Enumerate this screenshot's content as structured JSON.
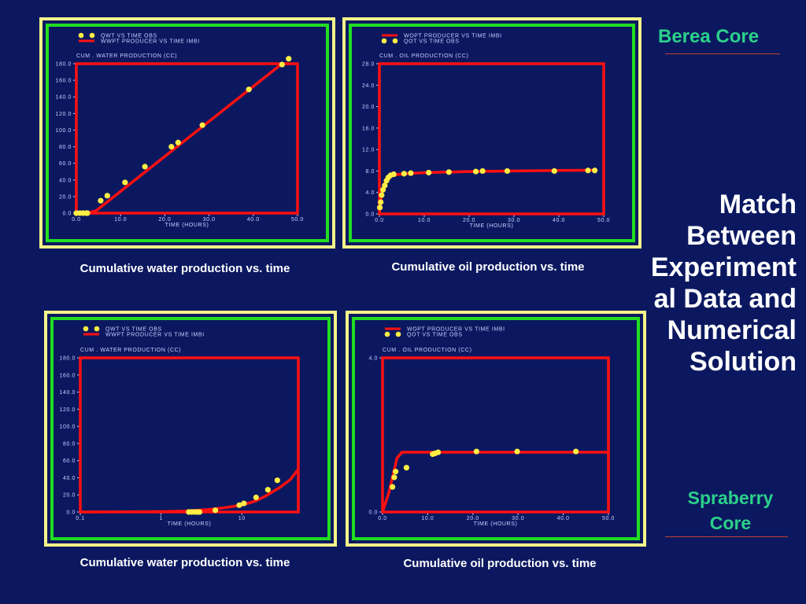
{
  "slide": {
    "title_lines": [
      "Match",
      "Between",
      "Experiment",
      "al Data and",
      "Numerical",
      "Solution"
    ],
    "berea_label": "Berea Core",
    "spraberry_label": "Spraberry Core",
    "accent_color": "#2bd18a",
    "background_color": "#0b1860"
  },
  "colors": {
    "sim_line": "#ff1010",
    "obs_point": "#ffee44",
    "outer_frame": "#f5f58a",
    "inner_frame": "#22dd22"
  },
  "chart_data": [
    {
      "type": "line",
      "caption": "Cumulative water production vs. time",
      "ylabel": "CUM . WATER PRODUCTION (CC)",
      "xlabel": "TIME (HOURS)",
      "xscale": "linear",
      "xlim": [
        0,
        50
      ],
      "ylim": [
        0,
        180
      ],
      "xticks": [
        0,
        10,
        20,
        30,
        40,
        50
      ],
      "xtick_labels": [
        "0.0",
        "10.0",
        "20.0",
        "30.0",
        "40.0",
        "50.0"
      ],
      "yticks": [
        0,
        20,
        40,
        60,
        80,
        100,
        120,
        140,
        160,
        180
      ],
      "ytick_labels": [
        "0.0",
        "20.0",
        "40.0",
        "60.0",
        "80.0",
        "100.0",
        "120.0",
        "140.0",
        "160.0",
        "180.0"
      ],
      "legend": [
        "QWT VS TIME OBS",
        "WWPT PRODUCER VS TIME IMBI"
      ],
      "series": [
        {
          "name": "WWPT PRODUCER VS TIME IMBI",
          "kind": "line",
          "x": [
            0,
            2.5,
            4.5,
            46.5,
            48
          ],
          "y": [
            0,
            0,
            3,
            182,
            186
          ]
        },
        {
          "name": "QWT VS TIME OBS",
          "kind": "points",
          "x": [
            0,
            0.8,
            1.5,
            2.2,
            2.5,
            5.5,
            7,
            11,
            15.5,
            21.5,
            23,
            28.5,
            39,
            46.5,
            48
          ],
          "y": [
            0,
            0,
            0,
            0,
            0,
            15,
            21,
            37,
            56,
            80,
            85,
            106,
            149,
            179,
            186
          ]
        }
      ]
    },
    {
      "type": "line",
      "caption": "Cumulative oil production vs. time",
      "ylabel": "CUM . OIL PRODUCTION (CC)",
      "xlabel": "TIME (HOURS)",
      "xscale": "linear",
      "xlim": [
        0,
        50
      ],
      "ylim": [
        0,
        28
      ],
      "xticks": [
        0,
        10,
        20,
        30,
        40,
        50
      ],
      "xtick_labels": [
        "0.0",
        "10.0",
        "20.0",
        "30.0",
        "40.0",
        "50.0"
      ],
      "yticks": [
        0,
        4,
        8,
        12,
        16,
        20,
        24,
        28
      ],
      "ytick_labels": [
        "0.0",
        "4.0",
        "8.0",
        "12.0",
        "16.0",
        "20.0",
        "24.0",
        "28.0"
      ],
      "legend": [
        "WOPT PRODUCER VS TIME IMBI",
        "QOT VS TIME OBS"
      ],
      "series": [
        {
          "name": "WOPT PRODUCER VS TIME IMBI",
          "kind": "line",
          "x": [
            0,
            0.3,
            0.8,
            1.4,
            2.2,
            3.5,
            6,
            10,
            20,
            30,
            40,
            48
          ],
          "y": [
            0,
            2.5,
            4.8,
            6.2,
            7.0,
            7.3,
            7.5,
            7.7,
            7.9,
            8.0,
            8.1,
            8.15
          ]
        },
        {
          "name": "QOT VS TIME OBS",
          "kind": "points",
          "x": [
            0.1,
            0.3,
            0.5,
            0.8,
            1.2,
            1.6,
            2.0,
            2.5,
            3.2,
            5.5,
            7,
            11,
            15.5,
            21.5,
            23,
            28.5,
            39,
            46.5,
            48
          ],
          "y": [
            1.2,
            2.2,
            3.5,
            4.5,
            5.3,
            6.2,
            6.8,
            7.2,
            7.4,
            7.5,
            7.6,
            7.7,
            7.8,
            7.9,
            8.0,
            8.0,
            8.0,
            8.1,
            8.1
          ]
        }
      ]
    },
    {
      "type": "line",
      "caption": "Cumulative water production vs. time",
      "ylabel": "CUM . WATER PRODUCTION (CC)",
      "xlabel": "TIME (HOURS)",
      "xscale": "log",
      "xlim": [
        0.1,
        50
      ],
      "ylim": [
        0,
        180
      ],
      "xticks": [
        0.1,
        1,
        10
      ],
      "xtick_labels": [
        "0.1",
        "1",
        "10"
      ],
      "yticks": [
        0,
        20,
        40,
        60,
        80,
        100,
        120,
        140,
        160,
        180
      ],
      "ytick_labels": [
        "0.0",
        "20.0",
        "40.0",
        "60.0",
        "80.0",
        "100.0",
        "120.0",
        "140.0",
        "160.0",
        "180.0"
      ],
      "legend": [
        "QWT VS TIME OBS",
        "WWPT PRODUCER VS TIME IMBI"
      ],
      "series": [
        {
          "name": "WWPT PRODUCER VS TIME IMBI",
          "kind": "line",
          "x": [
            0.1,
            1,
            2,
            4,
            6,
            10,
            15,
            20,
            30,
            40,
            50
          ],
          "y": [
            0,
            0.5,
            1,
            3,
            5,
            8,
            13,
            19,
            29,
            38,
            50
          ]
        },
        {
          "name": "QWT VS TIME OBS",
          "kind": "points",
          "x": [
            2.2,
            2.4,
            2.6,
            2.8,
            3.0,
            4.7,
            9.3,
            10.6,
            15,
            21,
            27.5
          ],
          "y": [
            0,
            0,
            0,
            0,
            0,
            2,
            8,
            10,
            17,
            26,
            37
          ]
        }
      ]
    },
    {
      "type": "line",
      "caption": "Cumulative oil production vs. time",
      "ylabel": "CUM . OIL PRODUCTION (CC)",
      "xlabel": "TIME (HOURS)",
      "xscale": "linear",
      "xlim": [
        0,
        50
      ],
      "ylim": [
        0,
        4
      ],
      "xticks": [
        0,
        10,
        20,
        30,
        40,
        50
      ],
      "xtick_labels": [
        "0.0",
        "10.0",
        "20.0",
        "30.0",
        "40.0",
        "50.0"
      ],
      "yticks": [
        0,
        4
      ],
      "ytick_labels": [
        "0.0",
        "4.0"
      ],
      "legend": [
        "WOPT PRODUCER VS TIME IMBI",
        "QOT VS TIME OBS"
      ],
      "series": [
        {
          "name": "WOPT PRODUCER VS TIME IMBI",
          "kind": "line",
          "x": [
            0,
            1.4,
            3.2,
            4.3,
            50
          ],
          "y": [
            0,
            0.5,
            1.4,
            1.55,
            1.55
          ]
        },
        {
          "name": "QOT VS TIME OBS",
          "kind": "points",
          "x": [
            2.2,
            2.6,
            2.9,
            5.3,
            11.1,
            11.6,
            12.3,
            20.8,
            29.8,
            42.8
          ],
          "y": [
            0.65,
            0.9,
            1.05,
            1.15,
            1.5,
            1.52,
            1.55,
            1.57,
            1.57,
            1.57
          ]
        }
      ]
    }
  ]
}
